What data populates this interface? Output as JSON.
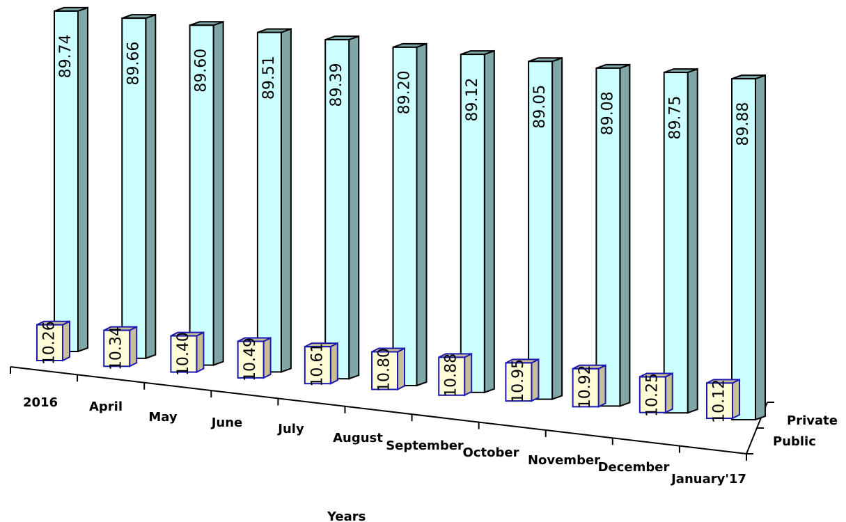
{
  "chart_data": {
    "type": "bar",
    "categories": [
      "2016",
      "April",
      "May",
      "June",
      "July",
      "August",
      "September",
      "October",
      "November",
      "December",
      "January'17"
    ],
    "series": [
      {
        "name": "Public",
        "values": [
          10.26,
          10.34,
          10.4,
          10.49,
          10.61,
          10.8,
          10.88,
          10.95,
          10.92,
          10.25,
          10.12
        ]
      },
      {
        "name": "Private",
        "values": [
          89.74,
          89.66,
          89.6,
          89.51,
          89.39,
          89.2,
          89.12,
          89.05,
          89.08,
          89.75,
          89.88
        ]
      }
    ],
    "xlabel": "Years",
    "grid": false,
    "colors": {
      "public_front": "#FFFDD8",
      "public_side": "#C9BE98",
      "public_outline": "#1A1AB0",
      "private_front": "#CCFFFF",
      "private_side": "#7FA7A7",
      "private_outline": "#000000"
    }
  }
}
